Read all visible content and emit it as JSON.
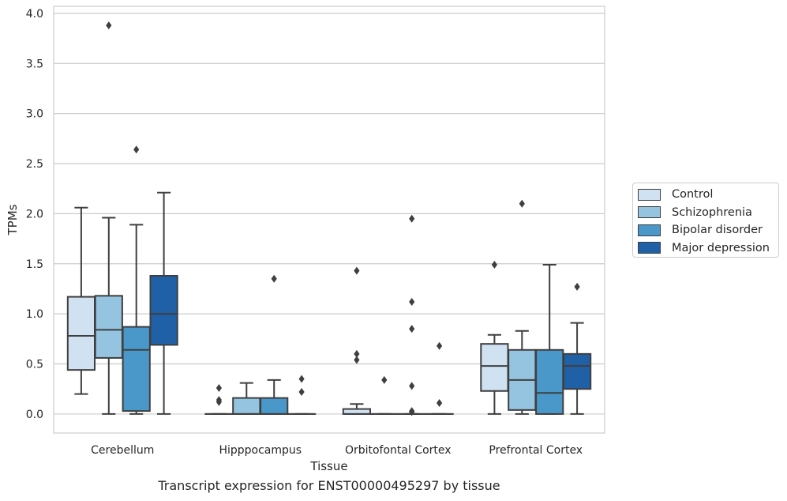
{
  "chart_data": {
    "type": "box",
    "title": "",
    "caption": "Transcript expression for ENST00000495297 by tissue",
    "xlabel": "Tissue",
    "ylabel": "TPMs",
    "ylim": [
      -0.19,
      4.07
    ],
    "yticks": [
      0.0,
      0.5,
      1.0,
      1.5,
      2.0,
      2.5,
      3.0,
      3.5,
      4.0
    ],
    "ytick_labels": [
      "0.0",
      "0.5",
      "1.0",
      "1.5",
      "2.0",
      "2.5",
      "3.0",
      "3.5",
      "4.0"
    ],
    "grid": "horizontal",
    "legend_position": "right",
    "categories": [
      "Cerebellum",
      "Hipppocampus",
      "Orbitofontal Cortex",
      "Prefrontal Cortex"
    ],
    "series": [
      {
        "name": "Control",
        "color": "#d0e1f2",
        "boxes": [
          {
            "q1": 0.44,
            "median": 0.78,
            "q3": 1.17,
            "whisker_low": 0.2,
            "whisker_high": 2.06,
            "outliers": []
          },
          {
            "q1": 0.0,
            "median": 0.0,
            "q3": 0.0,
            "whisker_low": 0.0,
            "whisker_high": 0.0,
            "outliers": [
              0.26,
              0.14,
              0.12
            ]
          },
          {
            "q1": 0.0,
            "median": 0.0,
            "q3": 0.05,
            "whisker_low": 0.0,
            "whisker_high": 0.1,
            "outliers": [
              1.43,
              0.6,
              0.54
            ]
          },
          {
            "q1": 0.23,
            "median": 0.48,
            "q3": 0.7,
            "whisker_low": 0.0,
            "whisker_high": 0.79,
            "outliers": [
              1.49
            ]
          }
        ]
      },
      {
        "name": "Schizophrenia",
        "color": "#94c4df",
        "boxes": [
          {
            "q1": 0.56,
            "median": 0.84,
            "q3": 1.18,
            "whisker_low": 0.0,
            "whisker_high": 1.96,
            "outliers": [
              3.88
            ]
          },
          {
            "q1": 0.0,
            "median": 0.0,
            "q3": 0.16,
            "whisker_low": 0.0,
            "whisker_high": 0.31,
            "outliers": []
          },
          {
            "q1": 0.0,
            "median": 0.0,
            "q3": 0.0,
            "whisker_low": 0.0,
            "whisker_high": 0.0,
            "outliers": [
              0.34
            ]
          },
          {
            "q1": 0.04,
            "median": 0.34,
            "q3": 0.64,
            "whisker_low": 0.0,
            "whisker_high": 0.83,
            "outliers": [
              2.1
            ]
          }
        ]
      },
      {
        "name": "Bipolar disorder",
        "color": "#4a98c9",
        "boxes": [
          {
            "q1": 0.03,
            "median": 0.64,
            "q3": 0.87,
            "whisker_low": 0.0,
            "whisker_high": 1.89,
            "outliers": [
              2.64
            ]
          },
          {
            "q1": 0.0,
            "median": 0.0,
            "q3": 0.16,
            "whisker_low": 0.0,
            "whisker_high": 0.34,
            "outliers": [
              1.35
            ]
          },
          {
            "q1": 0.0,
            "median": 0.0,
            "q3": 0.0,
            "whisker_low": 0.0,
            "whisker_high": 0.0,
            "outliers": [
              1.95,
              1.12,
              0.85,
              0.28,
              0.03,
              0.02
            ]
          },
          {
            "q1": 0.0,
            "median": 0.21,
            "q3": 0.64,
            "whisker_low": 0.0,
            "whisker_high": 1.49,
            "outliers": []
          }
        ]
      },
      {
        "name": "Major depression",
        "color": "#2060a7",
        "boxes": [
          {
            "q1": 0.69,
            "median": 1.0,
            "q3": 1.38,
            "whisker_low": 0.0,
            "whisker_high": 2.21,
            "outliers": []
          },
          {
            "q1": 0.0,
            "median": 0.0,
            "q3": 0.0,
            "whisker_low": 0.0,
            "whisker_high": 0.0,
            "outliers": [
              0.35,
              0.22
            ]
          },
          {
            "q1": 0.0,
            "median": 0.0,
            "q3": 0.0,
            "whisker_low": 0.0,
            "whisker_high": 0.0,
            "outliers": [
              0.68,
              0.11
            ]
          },
          {
            "q1": 0.25,
            "median": 0.48,
            "q3": 0.6,
            "whisker_low": 0.0,
            "whisker_high": 0.91,
            "outliers": [
              1.27
            ]
          }
        ]
      }
    ]
  }
}
